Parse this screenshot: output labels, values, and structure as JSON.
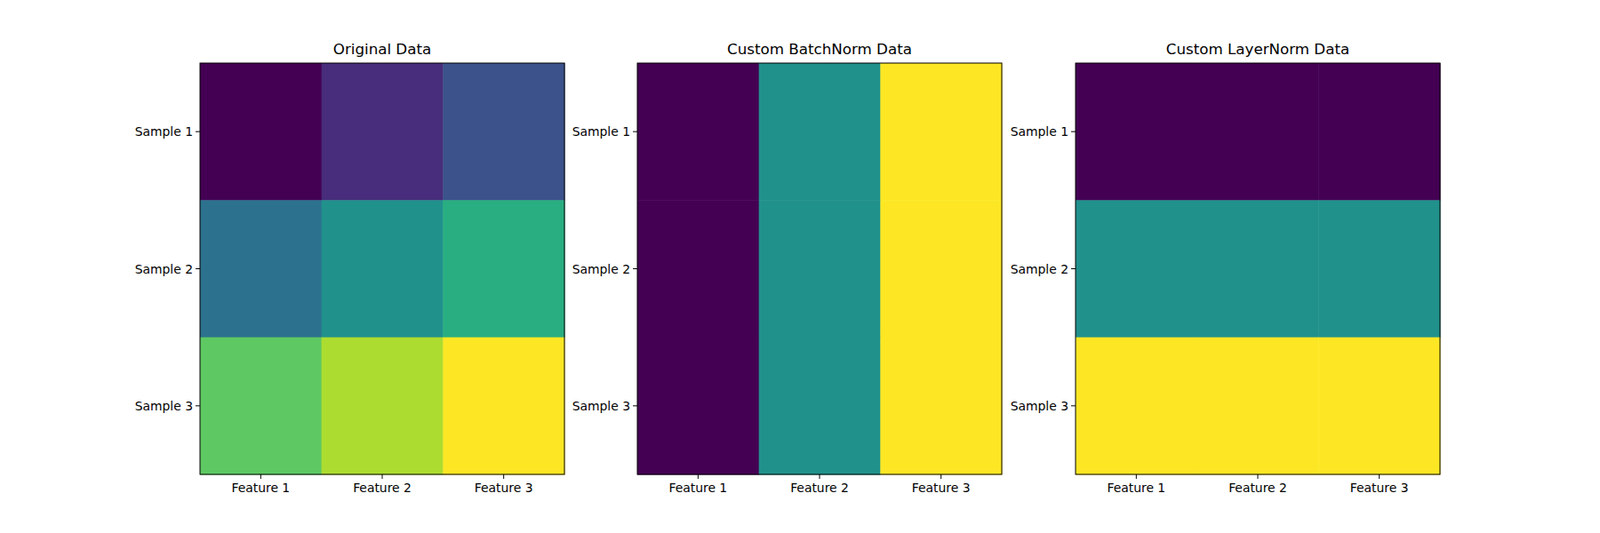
{
  "chart_data": [
    {
      "type": "heatmap",
      "title": "Original Data",
      "color": "viridis",
      "categories": [
        "Feature 1",
        "Feature 2",
        "Feature 3"
      ],
      "rows": [
        "Sample 1",
        "Sample 2",
        "Sample 3"
      ],
      "cells": [
        [
          1,
          2,
          3
        ],
        [
          4,
          5,
          6
        ],
        [
          7,
          8,
          9
        ]
      ]
    },
    {
      "type": "heatmap",
      "title": "Custom BatchNorm Data",
      "color": "viridis",
      "categories": [
        "Feature 1",
        "Feature 2",
        "Feature 3"
      ],
      "rows": [
        "Sample 1",
        "Sample 2",
        "Sample 3"
      ],
      "cells": [
        [
          -1.2247,
          0,
          1.2247
        ],
        [
          -1.2247,
          0,
          1.2247
        ],
        [
          -1.2247,
          0,
          1.2247
        ]
      ]
    },
    {
      "type": "heatmap",
      "title": "Custom LayerNorm Data",
      "color": "viridis",
      "categories": [
        "Feature 1",
        "Feature 2",
        "Feature 3"
      ],
      "rows": [
        "Sample 1",
        "Sample 2",
        "Sample 3"
      ],
      "cells": [
        [
          -1.2247,
          -1.2247,
          -1.2247
        ],
        [
          0,
          0,
          0
        ],
        [
          1.2247,
          1.2247,
          1.2247
        ]
      ]
    }
  ]
}
